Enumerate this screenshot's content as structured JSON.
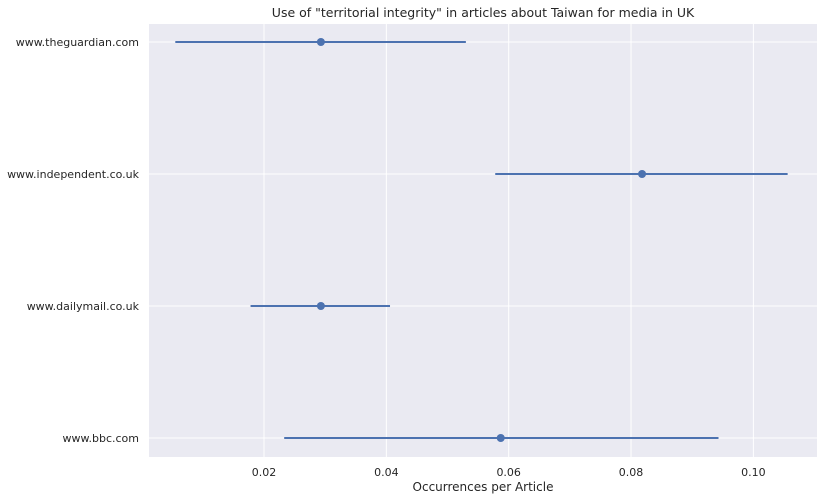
{
  "chart_data": {
    "type": "scatter",
    "subtype": "point-with-error-bars",
    "orientation": "horizontal",
    "title": "Use of \"territorial integrity\" in articles about Taiwan for media in UK",
    "xlabel": "Occurrences per Article",
    "ylabel": "",
    "categories": [
      "www.theguardian.com",
      "www.independent.co.uk",
      "www.dailymail.co.uk",
      "www.bbc.com"
    ],
    "values": [
      0.0293,
      0.0818,
      0.0293,
      0.0587
    ],
    "ci_low": [
      0.0055,
      0.0578,
      0.0178,
      0.0233
    ],
    "ci_high": [
      0.053,
      0.1056,
      0.0406,
      0.0943
    ],
    "xlim": [
      0.0012,
      0.1104
    ],
    "xticks": [
      "0.02",
      "0.04",
      "0.06",
      "0.08",
      "0.10"
    ],
    "xtick_values": [
      0.02,
      0.04,
      0.06,
      0.08,
      0.1
    ],
    "grid": true,
    "colors": {
      "series": "#4c72b0",
      "plot_background": "#eaeaf2",
      "grid": "#ffffff",
      "text": "#262626"
    }
  }
}
